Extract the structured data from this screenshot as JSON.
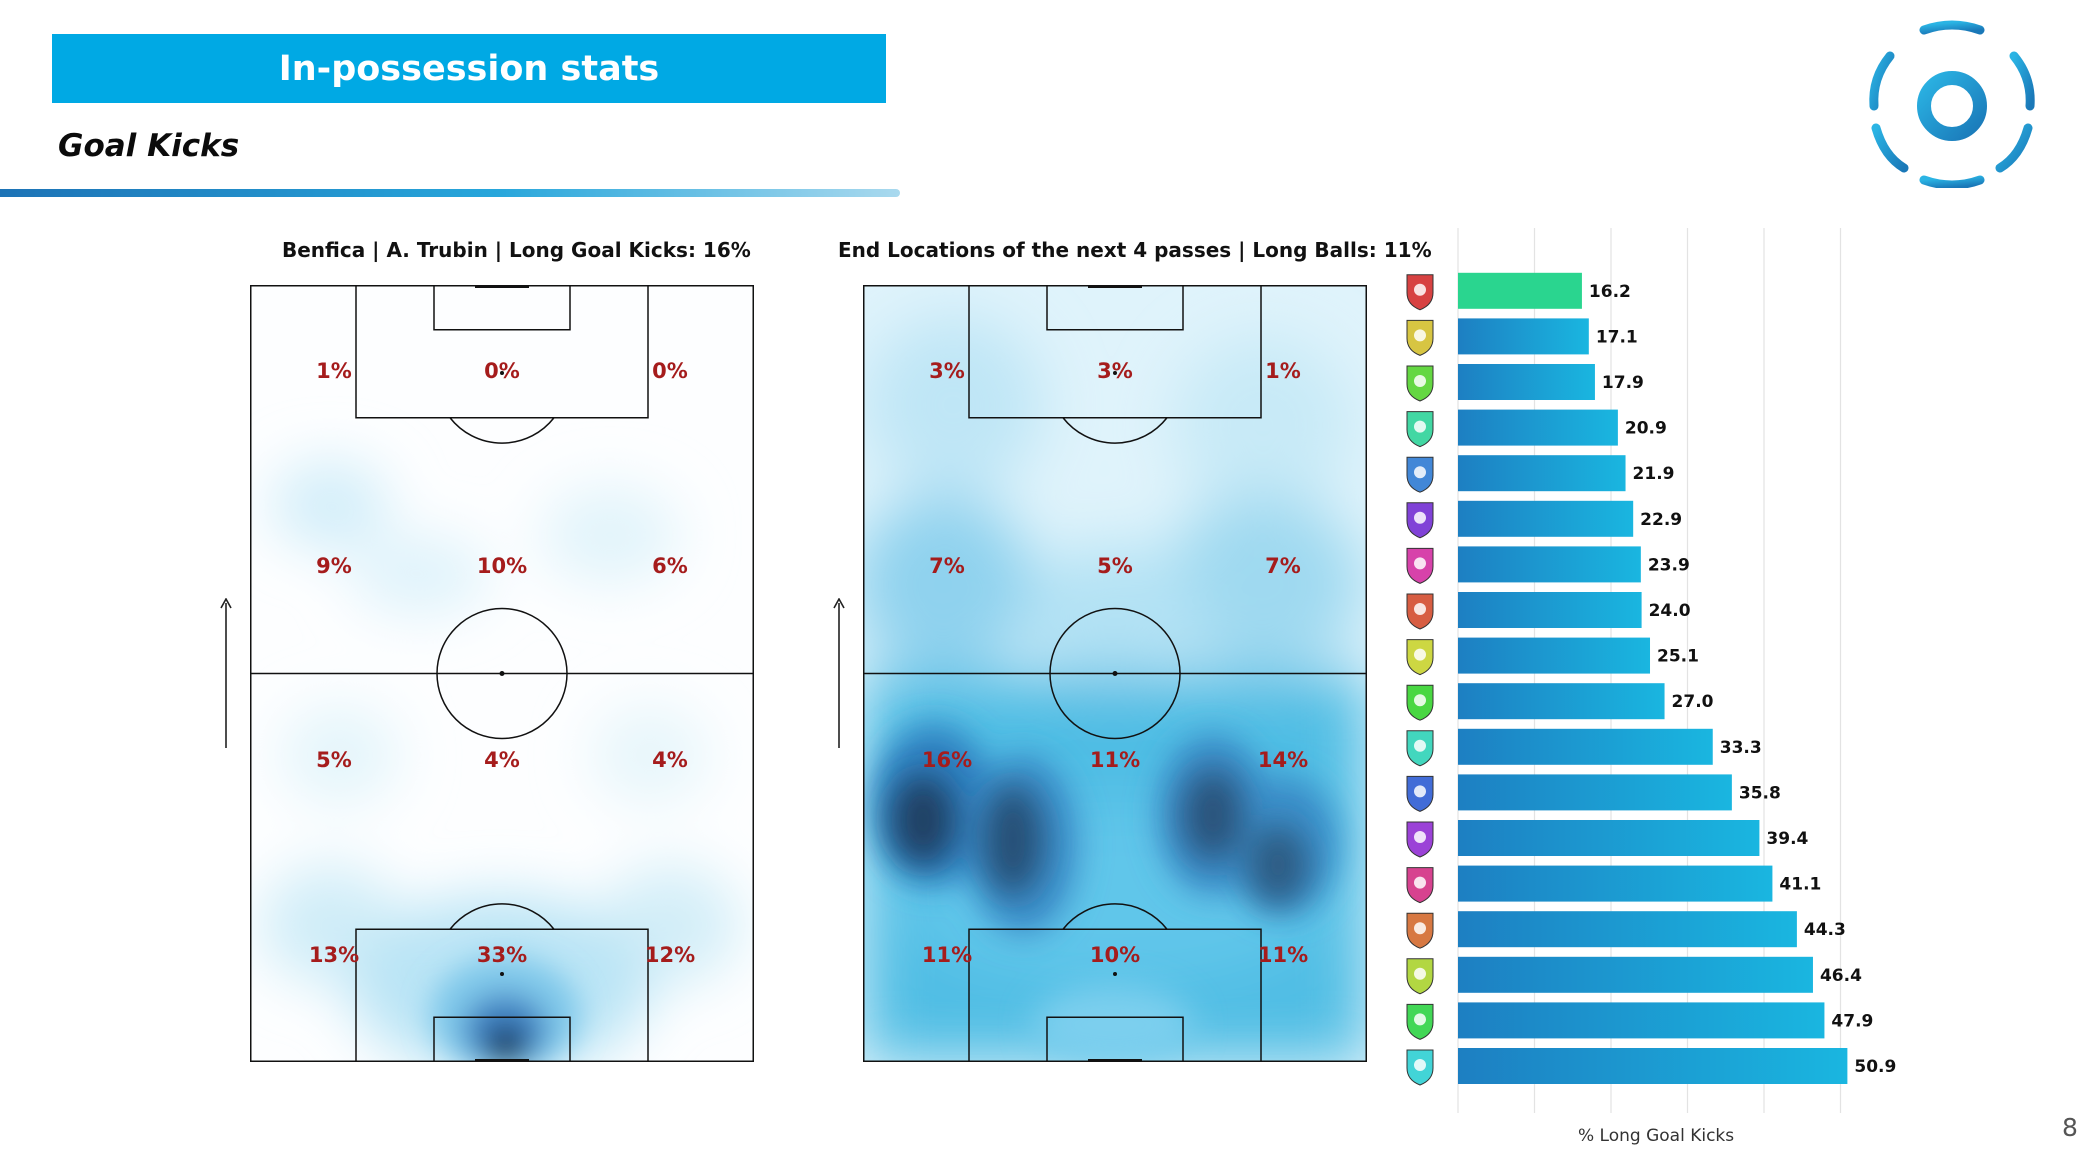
{
  "header": {
    "title": "In-possession stats",
    "subtitle": "Goal Kicks"
  },
  "page_number": "8",
  "colors": {
    "banner": "#00a9e4",
    "highlight_bar": "#2ad58f",
    "bar_gradient_start": "#1d7fc2",
    "bar_gradient_end": "#1ab6e0",
    "zone_label": "#a51c1c",
    "heat_light": "#d9f1fa",
    "heat_dark": "#13304f"
  },
  "chart_data": [
    {
      "type": "heatmap",
      "title": "Benfica | A. Trubin | Long Goal Kicks: 16%",
      "zones": [
        [
          "1%",
          "0%",
          "0%"
        ],
        [
          "9%",
          "10%",
          "6%"
        ],
        [
          "5%",
          "4%",
          "4%"
        ],
        [
          "13%",
          "33%",
          "12%"
        ]
      ]
    },
    {
      "type": "heatmap",
      "title": "End Locations of the next 4 passes | Long Balls: 11%",
      "zones": [
        [
          "3%",
          "3%",
          "1%"
        ],
        [
          "7%",
          "5%",
          "7%"
        ],
        [
          "16%",
          "11%",
          "14%"
        ],
        [
          "11%",
          "10%",
          "11%"
        ]
      ]
    },
    {
      "type": "bar",
      "orientation": "horizontal",
      "xlabel": "% Long Goal Kicks",
      "xlim": [
        0,
        55
      ],
      "grid": true,
      "values": [
        16.2,
        17.1,
        17.9,
        20.9,
        21.9,
        22.9,
        23.9,
        24.0,
        25.1,
        27.0,
        33.3,
        35.8,
        39.4,
        41.1,
        44.3,
        46.4,
        47.9,
        50.9
      ],
      "value_labels": [
        "16.2",
        "17.1",
        "17.9",
        "20.9",
        "21.9",
        "22.9",
        "23.9",
        "24.0",
        "25.1",
        "27.0",
        "33.3",
        "35.8",
        "39.4",
        "41.1",
        "44.3",
        "46.4",
        "47.9",
        "50.9"
      ],
      "highlight_index": 0,
      "crest_icons": [
        "benfica-crest-icon",
        "braga-crest-icon",
        "arouca-crest-icon",
        "afs-crest-icon",
        "porto-crest-icon",
        "sporting-crest-icon",
        "vitoria-crest-icon",
        "rio-ave-crest-icon",
        "casa-pia-crest-icon",
        "famalicao-crest-icon",
        "boavista-crest-icon",
        "moreirense-crest-icon",
        "santa-clara-crest-icon",
        "gil-vicente-crest-icon",
        "nacional-crest-icon",
        "sc-farense-crest-icon",
        "estrela-crest-icon",
        "estoril-crest-icon"
      ]
    }
  ]
}
